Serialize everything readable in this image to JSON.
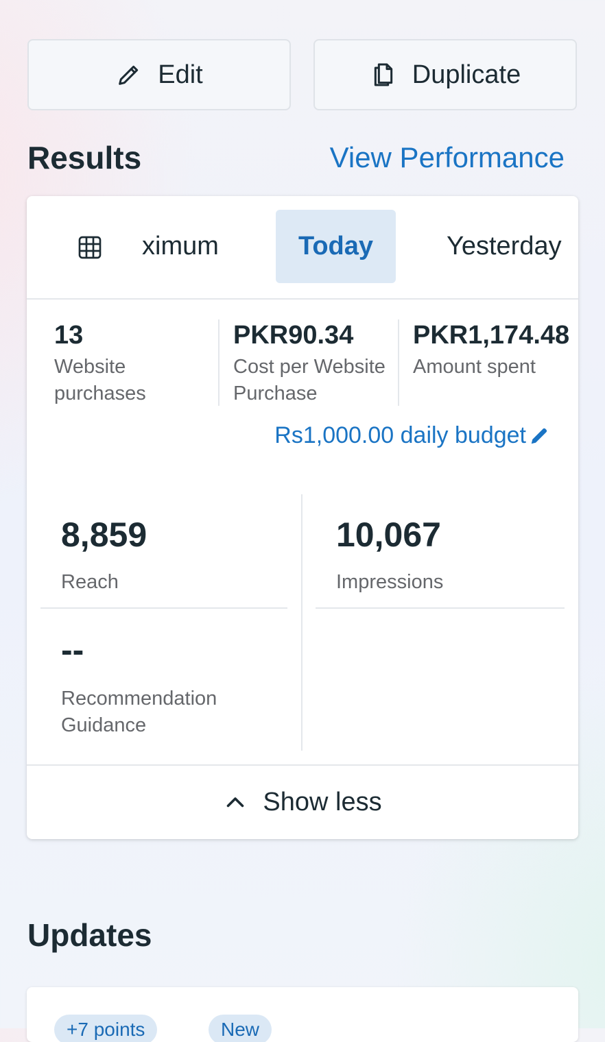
{
  "actions": {
    "edit_label": "Edit",
    "duplicate_label": "Duplicate"
  },
  "results": {
    "title": "Results",
    "view_performance": "View Performance",
    "tabs": [
      "ximum",
      "Today",
      "Yesterday"
    ],
    "selected_tab": "Today",
    "kpis": [
      {
        "value": "13",
        "label": "Website purchases"
      },
      {
        "value": "PKR90.34",
        "label": "Cost per Website Purchase"
      },
      {
        "value": "PKR1,174.48",
        "label": "Amount spent"
      }
    ],
    "budget": "Rs1,000.00 daily budget",
    "metrics": {
      "reach": {
        "value": "8,859",
        "label": "Reach"
      },
      "impressions": {
        "value": "10,067",
        "label": "Impressions"
      },
      "recommendation": {
        "value": "--",
        "label": "Recommendation Guidance"
      }
    },
    "show_less": "Show less"
  },
  "updates": {
    "title": "Updates",
    "pills": [
      "+7 points",
      "New"
    ]
  },
  "colors": {
    "accent": "#1a74c4",
    "selected_tab_bg": "#dde9f5",
    "text": "#1c2b33",
    "muted": "#65676b"
  },
  "icons": [
    "pencil-icon",
    "duplicate-icon",
    "table-icon",
    "edit-pencil-icon",
    "chevron-up-icon"
  ]
}
